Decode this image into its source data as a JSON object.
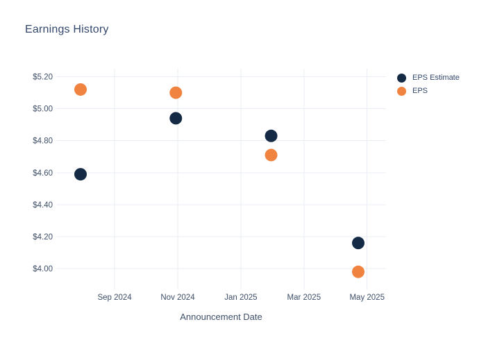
{
  "chart_data": {
    "type": "scatter",
    "title": "Earnings History",
    "xlabel": "Announcement Date",
    "ylabel": "",
    "grid": true,
    "legend_position": "right",
    "xlim": [
      -0.85,
      9.6
    ],
    "ylim": [
      3.87,
      5.25
    ],
    "x_ticks": [
      {
        "pos": 1,
        "label": "Sep 2024"
      },
      {
        "pos": 3,
        "label": "Nov 2024"
      },
      {
        "pos": 5,
        "label": "Jan 2025"
      },
      {
        "pos": 7,
        "label": "Mar 2025"
      },
      {
        "pos": 9,
        "label": "May 2025"
      }
    ],
    "y_ticks": [
      {
        "value": 5.2,
        "label": "$5.20"
      },
      {
        "value": 5.0,
        "label": "$5.00"
      },
      {
        "value": 4.8,
        "label": "$4.80"
      },
      {
        "value": 4.6,
        "label": "$4.60"
      },
      {
        "value": 4.4,
        "label": "$4.40"
      },
      {
        "value": 4.2,
        "label": "$4.20"
      },
      {
        "value": 4.0,
        "label": "$4.00"
      }
    ],
    "series": [
      {
        "name": "EPS Estimate",
        "color": "#152a44",
        "x": [
          -0.08,
          2.94,
          5.96,
          8.72
        ],
        "y": [
          4.59,
          4.94,
          4.83,
          4.16
        ]
      },
      {
        "name": "EPS",
        "color": "#f0833f",
        "x": [
          -0.08,
          2.94,
          5.96,
          8.72
        ],
        "y": [
          5.12,
          5.1,
          4.71,
          3.98
        ]
      }
    ],
    "marker_diameter_px": 18
  },
  "colors": {
    "grid_line": "#e8edf6",
    "tick_label": "#3d4e68",
    "axis_title": "#3d4e68",
    "chart_title": "#33476b",
    "background": "#ffffff"
  }
}
